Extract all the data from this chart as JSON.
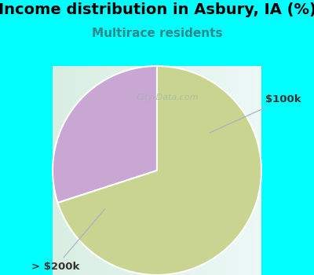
{
  "title": "Income distribution in Asbury, IA (%)",
  "subtitle": "Multirace residents",
  "title_color": "#000000",
  "subtitle_color": "#2d8a8a",
  "background_color": "#00FFFF",
  "chart_bg_left": "#d6ede0",
  "chart_bg_right": "#e8f5f0",
  "slices": [
    {
      "label": "$100k",
      "value": 30,
      "color": "#C8A8D2"
    },
    {
      "label": "> $200k",
      "value": 70,
      "color": "#C8D490"
    }
  ],
  "label_fontsize": 9.5,
  "title_fontsize": 14,
  "subtitle_fontsize": 11,
  "startangle": 90
}
